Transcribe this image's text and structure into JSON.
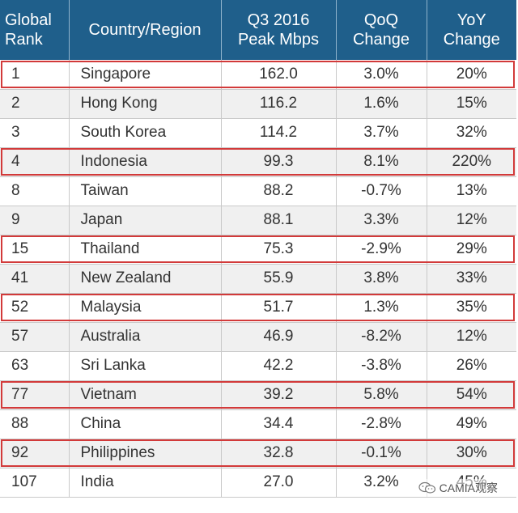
{
  "header": {
    "rank_line1": "Global",
    "rank_line2": "Rank",
    "country": "Country/Region",
    "mbps_line1": "Q3 2016",
    "mbps_line2": "Peak Mbps",
    "qoq_line1": "QoQ",
    "qoq_line2": "Change",
    "yoy_line1": "YoY",
    "yoy_line2": "Change"
  },
  "rows": [
    {
      "rank": "1",
      "country": "Singapore",
      "mbps": "162.0",
      "qoq": "3.0%",
      "yoy": "20%"
    },
    {
      "rank": "2",
      "country": "Hong Kong",
      "mbps": "116.2",
      "qoq": "1.6%",
      "yoy": "15%"
    },
    {
      "rank": "3",
      "country": "South Korea",
      "mbps": "114.2",
      "qoq": "3.7%",
      "yoy": "32%"
    },
    {
      "rank": "4",
      "country": "Indonesia",
      "mbps": "99.3",
      "qoq": "8.1%",
      "yoy": "220%"
    },
    {
      "rank": "8",
      "country": "Taiwan",
      "mbps": "88.2",
      "qoq": "-0.7%",
      "yoy": "13%"
    },
    {
      "rank": "9",
      "country": "Japan",
      "mbps": "88.1",
      "qoq": "3.3%",
      "yoy": "12%"
    },
    {
      "rank": "15",
      "country": "Thailand",
      "mbps": "75.3",
      "qoq": "-2.9%",
      "yoy": "29%"
    },
    {
      "rank": "41",
      "country": "New Zealand",
      "mbps": "55.9",
      "qoq": "3.8%",
      "yoy": "33%"
    },
    {
      "rank": "52",
      "country": "Malaysia",
      "mbps": "51.7",
      "qoq": "1.3%",
      "yoy": "35%"
    },
    {
      "rank": "57",
      "country": "Australia",
      "mbps": "46.9",
      "qoq": "-8.2%",
      "yoy": "12%"
    },
    {
      "rank": "63",
      "country": "Sri Lanka",
      "mbps": "42.2",
      "qoq": "-3.8%",
      "yoy": "26%"
    },
    {
      "rank": "77",
      "country": "Vietnam",
      "mbps": "39.2",
      "qoq": "5.8%",
      "yoy": "54%"
    },
    {
      "rank": "88",
      "country": "China",
      "mbps": "34.4",
      "qoq": "-2.8%",
      "yoy": "49%"
    },
    {
      "rank": "92",
      "country": "Philippines",
      "mbps": "32.8",
      "qoq": "-0.1%",
      "yoy": "30%"
    },
    {
      "rank": "107",
      "country": "India",
      "mbps": "27.0",
      "qoq": "3.2%",
      "yoy": "45%"
    }
  ],
  "highlighted_rows": [
    0,
    3,
    6,
    8,
    11,
    13
  ],
  "watermark": {
    "text": "CAMIA观察",
    "icon": "wechat-icon"
  },
  "colors": {
    "header_bg": "#1f5f8b",
    "header_text": "#ffffff",
    "row_alt_bg": "#f0f0f0",
    "highlight_border": "#d23a3a"
  }
}
